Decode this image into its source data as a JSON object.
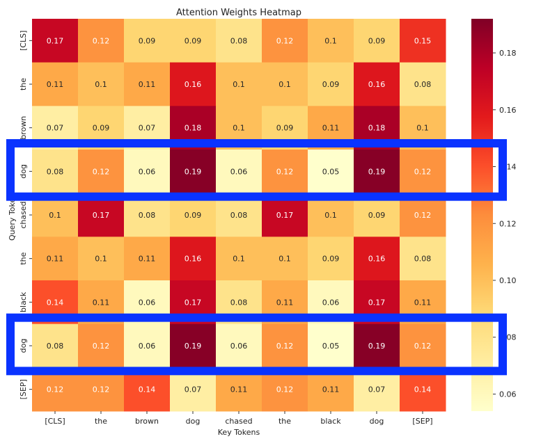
{
  "chart_data": {
    "type": "heatmap",
    "title": "Attention Weights Heatmap",
    "xlabel": "Key Tokens",
    "ylabel": "Query Tokens",
    "x_categories": [
      "[CLS]",
      "the",
      "brown",
      "dog",
      "chased",
      "the",
      "black",
      "dog",
      "[SEP]"
    ],
    "y_categories": [
      "[CLS]",
      "the",
      "brown",
      "dog",
      "chased",
      "the",
      "black",
      "dog",
      "[SEP]"
    ],
    "values": [
      [
        0.17,
        0.12,
        0.09,
        0.09,
        0.08,
        0.12,
        0.1,
        0.09,
        0.15
      ],
      [
        0.11,
        0.1,
        0.11,
        0.16,
        0.1,
        0.1,
        0.09,
        0.16,
        0.08
      ],
      [
        0.07,
        0.09,
        0.07,
        0.18,
        0.1,
        0.09,
        0.11,
        0.18,
        0.1
      ],
      [
        0.08,
        0.12,
        0.06,
        0.19,
        0.06,
        0.12,
        0.05,
        0.19,
        0.12
      ],
      [
        0.1,
        0.17,
        0.08,
        0.09,
        0.08,
        0.17,
        0.1,
        0.09,
        0.12
      ],
      [
        0.11,
        0.1,
        0.11,
        0.16,
        0.1,
        0.1,
        0.09,
        0.16,
        0.08
      ],
      [
        0.14,
        0.11,
        0.06,
        0.17,
        0.08,
        0.11,
        0.06,
        0.17,
        0.11
      ],
      [
        0.08,
        0.12,
        0.06,
        0.19,
        0.06,
        0.12,
        0.05,
        0.19,
        0.12
      ],
      [
        0.12,
        0.12,
        0.14,
        0.07,
        0.11,
        0.12,
        0.11,
        0.07,
        0.14
      ]
    ],
    "colormap": "YlOrRd",
    "color_range": [
      0.054,
      0.192
    ],
    "colorbar_ticks": [
      "0.06",
      "0.08",
      "0.10",
      "0.12",
      "0.14",
      "0.16",
      "0.18"
    ],
    "annotations": true,
    "highlighted_rows": [
      3,
      7
    ],
    "highlight_color": "#0a33ff"
  }
}
